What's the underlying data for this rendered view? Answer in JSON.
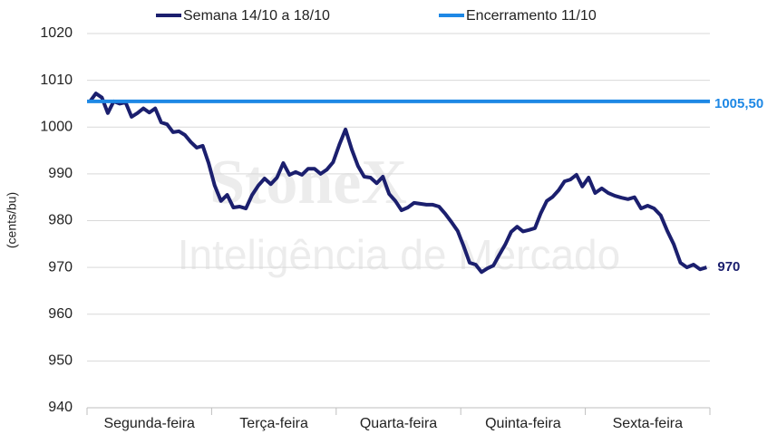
{
  "chart_data": {
    "type": "line",
    "y_label": "(cents/bu)",
    "watermark": [
      "StoneX",
      "Inteligência de Mercado"
    ],
    "categories": [
      "Segunda-feira",
      "Terça-feira",
      "Quarta-feira",
      "Quinta-feira",
      "Sexta-feira"
    ],
    "ylim": [
      940,
      1020
    ],
    "yticks": [
      940,
      950,
      960,
      970,
      980,
      990,
      1000,
      1010,
      1020
    ],
    "grid": true,
    "series": [
      {
        "name": "Semana 14/10 a 18/10",
        "color": "#1b1f6e",
        "values": [
          [
            1005.5,
            1007.2,
            1006.3,
            1003,
            1005.5,
            1005,
            1005.3,
            1002.2,
            1003,
            1004,
            1003.1,
            1004,
            1001,
            1000.6,
            998.9,
            999.1,
            998.3,
            996.8,
            995.6,
            996,
            992.3
          ],
          [
            987.5,
            984.2,
            985.5,
            982.8,
            983,
            982.6,
            985.5,
            987.5,
            989,
            987.8,
            989.2,
            992.3,
            989.8,
            990.4,
            989.8,
            991.1,
            991.1,
            990,
            990.9,
            992.5
          ],
          [
            996.2,
            999.5,
            995.2,
            991.7,
            989.4,
            989.2,
            988,
            989.4,
            985.7,
            984.2,
            982.2,
            982.8,
            983.8,
            983.6,
            983.4,
            983.4,
            983,
            981.5,
            979.7,
            977.8
          ],
          [
            974.5,
            971,
            970.6,
            969,
            969.8,
            970.4,
            972.7,
            974.9,
            977.6,
            978.7,
            977.7,
            978,
            978.4,
            981.6,
            984.2,
            985.1,
            986.5,
            988.4,
            988.8,
            989.8,
            987.3
          ],
          [
            989.2,
            985.9,
            986.9,
            985.9,
            985.3,
            984.9,
            984.6,
            985,
            982.6,
            983.2,
            982.6,
            981.1,
            977.8,
            974.9,
            971,
            970,
            970.6,
            969.6,
            970
          ]
        ]
      },
      {
        "name": "Encerramento 11/10",
        "color": "#1e88e5",
        "value": 1005.5,
        "value_label": "1005,50"
      }
    ]
  }
}
